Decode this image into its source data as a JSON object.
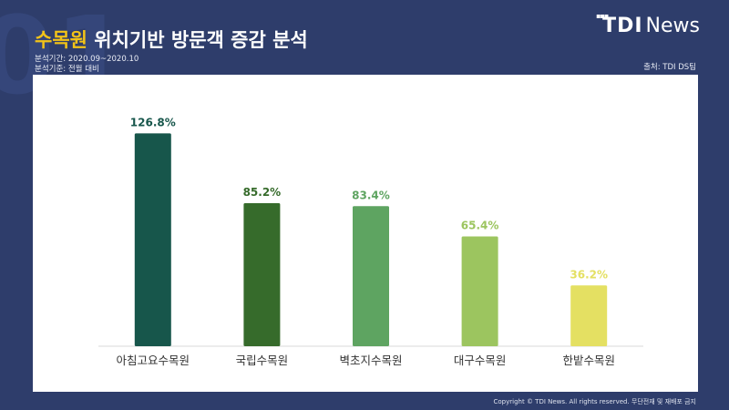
{
  "watermark": "01",
  "header": {
    "title_highlight": "수목원",
    "title_rest": " 위치기반 방문객 증감 분석",
    "period": "분석기간: 2020.09~2020.10",
    "basis": "분석기준: 전월 대비",
    "source": "출처: TDI DS팀"
  },
  "logo": {
    "bold": "TDI",
    "thin": "News",
    "dots": "▪▪▪"
  },
  "footer": {
    "copyright": "Copyright © TDI News. All rights reserved. 무단전재 및 재배포 금지"
  },
  "colors": {
    "background": "#2e3d6b",
    "title_highlight": "#f2c318",
    "bars": [
      "#17564b",
      "#366b2b",
      "#5ea461",
      "#9cc55f",
      "#e4e062"
    ]
  },
  "chart_data": {
    "type": "bar",
    "categories": [
      "아침고요수목원",
      "국립수목원",
      "벽초지수목원",
      "대구수목원",
      "한밭수목원"
    ],
    "values": [
      126.8,
      85.2,
      83.4,
      65.4,
      36.2
    ],
    "value_labels": [
      "126.8%",
      "85.2%",
      "83.4%",
      "65.4%",
      "36.2%"
    ],
    "unit": "%",
    "ylim": [
      0,
      140
    ],
    "grid": false,
    "legend": "none"
  }
}
